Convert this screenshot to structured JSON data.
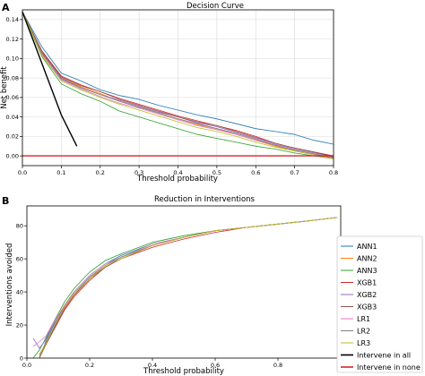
{
  "figure": {
    "panel_labels": [
      "A",
      "B"
    ]
  },
  "chart_data": [
    {
      "type": "line",
      "title": "Decision Curve",
      "xlabel": "Threshold probability",
      "ylabel": "Net benefit",
      "xlim": [
        0.0,
        0.8
      ],
      "ylim": [
        -0.01,
        0.15
      ],
      "xticks": [
        0.0,
        0.1,
        0.2,
        0.3,
        0.4,
        0.5,
        0.6,
        0.7,
        0.8
      ],
      "xtick_labels": [
        "0.0",
        "0.1",
        "0.2",
        "0.3",
        "0.4",
        "0.5",
        "0.6",
        "0.7",
        "0.8"
      ],
      "yticks": [
        0.0,
        0.02,
        0.04,
        0.06,
        0.08,
        0.1,
        0.12,
        0.14
      ],
      "ytick_labels": [
        "0.00",
        "0.02",
        "0.04",
        "0.06",
        "0.08",
        "0.10",
        "0.12",
        "0.14"
      ],
      "x": [
        0.0,
        0.05,
        0.1,
        0.15,
        0.2,
        0.25,
        0.3,
        0.35,
        0.4,
        0.45,
        0.5,
        0.55,
        0.6,
        0.65,
        0.7,
        0.75,
        0.8
      ],
      "series": [
        {
          "color": "#1f77b4",
          "values": [
            0.148,
            0.112,
            0.085,
            0.077,
            0.068,
            0.062,
            0.058,
            0.052,
            0.047,
            0.042,
            0.038,
            0.033,
            0.028,
            0.025,
            0.022,
            0.016,
            0.012
          ]
        },
        {
          "color": "#ff7f0e",
          "values": [
            0.148,
            0.105,
            0.08,
            0.071,
            0.064,
            0.056,
            0.05,
            0.044,
            0.038,
            0.032,
            0.028,
            0.022,
            0.016,
            0.01,
            0.005,
            0.001,
            -0.002
          ]
        },
        {
          "color": "#2ca02c",
          "values": [
            0.148,
            0.102,
            0.074,
            0.064,
            0.056,
            0.046,
            0.04,
            0.034,
            0.028,
            0.022,
            0.018,
            0.014,
            0.01,
            0.007,
            0.003,
            0.0,
            -0.003
          ]
        },
        {
          "color": "#d62728",
          "values": [
            0.148,
            0.108,
            0.082,
            0.073,
            0.066,
            0.059,
            0.053,
            0.047,
            0.041,
            0.036,
            0.031,
            0.026,
            0.02,
            0.013,
            0.008,
            0.004,
            0.0
          ]
        },
        {
          "color": "#9467bd",
          "values": [
            0.148,
            0.106,
            0.079,
            0.07,
            0.063,
            0.057,
            0.051,
            0.045,
            0.04,
            0.034,
            0.03,
            0.024,
            0.018,
            0.012,
            0.007,
            0.003,
            -0.001
          ]
        },
        {
          "color": "#8c564b",
          "values": [
            0.148,
            0.107,
            0.081,
            0.072,
            0.066,
            0.058,
            0.052,
            0.046,
            0.04,
            0.035,
            0.031,
            0.025,
            0.019,
            0.013,
            0.008,
            0.004,
            -0.001
          ]
        },
        {
          "color": "#e377c2",
          "values": [
            0.148,
            0.104,
            0.078,
            0.069,
            0.061,
            0.054,
            0.049,
            0.043,
            0.037,
            0.031,
            0.027,
            0.022,
            0.016,
            0.011,
            0.006,
            0.002,
            -0.002
          ]
        },
        {
          "color": "#7f7f7f",
          "values": [
            0.148,
            0.106,
            0.08,
            0.07,
            0.063,
            0.056,
            0.05,
            0.044,
            0.038,
            0.033,
            0.028,
            0.023,
            0.017,
            0.011,
            0.006,
            0.002,
            -0.002
          ]
        },
        {
          "color": "#bcbd22",
          "values": [
            0.148,
            0.103,
            0.077,
            0.068,
            0.06,
            0.053,
            0.047,
            0.041,
            0.035,
            0.029,
            0.025,
            0.02,
            0.014,
            0.009,
            0.005,
            0.001,
            -0.003
          ]
        },
        {
          "color": "#000000",
          "values": [
            0.148,
            0.095,
            0.042,
            null,
            null,
            null,
            null,
            null,
            null,
            null,
            null,
            null,
            null,
            null,
            null,
            null,
            null
          ],
          "extra_point": [
            0.14,
            0.01
          ]
        },
        {
          "color": "#d62728",
          "values": [
            0.0,
            0.0,
            0.0,
            0.0,
            0.0,
            0.0,
            0.0,
            0.0,
            0.0,
            0.0,
            0.0,
            0.0,
            0.0,
            0.0,
            0.0,
            0.0,
            0.0
          ]
        }
      ]
    },
    {
      "type": "line",
      "title": "Reduction in Interventions",
      "xlabel": "Threshold probability",
      "ylabel": "Interventions avoided",
      "xlim": [
        0.0,
        1.0
      ],
      "ylim": [
        0,
        92
      ],
      "xticks": [
        0.0,
        0.2,
        0.4,
        0.6,
        0.8,
        1.0
      ],
      "xtick_labels": [
        "0.0",
        "0.2",
        "0.4",
        "0.6",
        "0.8",
        "1.0"
      ],
      "yticks": [
        0,
        20,
        40,
        60,
        80
      ],
      "ytick_labels": [
        "0",
        "20",
        "40",
        "60",
        "80"
      ],
      "x": [
        0.0,
        0.02,
        0.04,
        0.06,
        0.08,
        0.1,
        0.12,
        0.15,
        0.2,
        0.25,
        0.3,
        0.4,
        0.5,
        0.6,
        0.7,
        0.8,
        0.9,
        0.99
      ],
      "series": [
        {
          "name": "ANN1",
          "color": "#1f77b4",
          "values": [
            null,
            null,
            0,
            10,
            18,
            25,
            32,
            40,
            50,
            57,
            62,
            69,
            73,
            77,
            79,
            81,
            83,
            85
          ]
        },
        {
          "name": "ANN2",
          "color": "#ff7f0e",
          "values": [
            null,
            null,
            2,
            9,
            16,
            23,
            30,
            38,
            48,
            56,
            61,
            68,
            73,
            77,
            79,
            81,
            83,
            85
          ]
        },
        {
          "name": "ANN3",
          "color": "#2ca02c",
          "values": [
            null,
            0,
            5,
            12,
            20,
            27,
            34,
            42,
            52,
            59,
            63,
            70,
            74,
            77,
            79,
            81,
            83,
            85
          ]
        },
        {
          "name": "XGB1",
          "color": "#d62728",
          "values": [
            null,
            null,
            1,
            8,
            15,
            22,
            29,
            37,
            47,
            55,
            60,
            67,
            72,
            76,
            79,
            81,
            83,
            85
          ]
        },
        {
          "name": "XGB2",
          "color": "#9467bd",
          "values": [
            null,
            12,
            6,
            11,
            19,
            25,
            31,
            39,
            49,
            56,
            61,
            68,
            73,
            77,
            79,
            81,
            83,
            85
          ]
        },
        {
          "name": "XGB3",
          "color": "#8c564b",
          "values": [
            null,
            null,
            0,
            8,
            15,
            23,
            30,
            38,
            48,
            55,
            60,
            68,
            73,
            77,
            79,
            81,
            83,
            85
          ]
        },
        {
          "name": "LR1",
          "color": "#e377c2",
          "values": [
            null,
            7,
            10,
            13,
            20,
            26,
            32,
            40,
            50,
            57,
            61,
            69,
            73,
            77,
            79,
            81,
            83,
            85
          ]
        },
        {
          "name": "LR2",
          "color": "#7f7f7f",
          "values": [
            null,
            null,
            2,
            9,
            16,
            24,
            31,
            39,
            49,
            56,
            61,
            68,
            73,
            77,
            79,
            81,
            83,
            85
          ]
        },
        {
          "name": "LR3",
          "color": "#bcbd22",
          "values": [
            null,
            null,
            1,
            9,
            17,
            24,
            31,
            39,
            48,
            56,
            60,
            68,
            73,
            77,
            79,
            81,
            83,
            85
          ]
        }
      ],
      "legend": {
        "placement": "right",
        "entries": [
          {
            "label": "ANN1",
            "color": "#1f77b4"
          },
          {
            "label": "ANN2",
            "color": "#ff7f0e"
          },
          {
            "label": "ANN3",
            "color": "#2ca02c"
          },
          {
            "label": "XGB1",
            "color": "#d62728"
          },
          {
            "label": "XGB2",
            "color": "#9467bd"
          },
          {
            "label": "XGB3",
            "color": "#8c564b"
          },
          {
            "label": "LR1",
            "color": "#e377c2"
          },
          {
            "label": "LR2",
            "color": "#7f7f7f"
          },
          {
            "label": "LR3",
            "color": "#bcbd22"
          },
          {
            "label": "Intervene in all",
            "color": "#000000"
          },
          {
            "label": "Intervene in none",
            "color": "#d62728"
          }
        ]
      }
    }
  ]
}
